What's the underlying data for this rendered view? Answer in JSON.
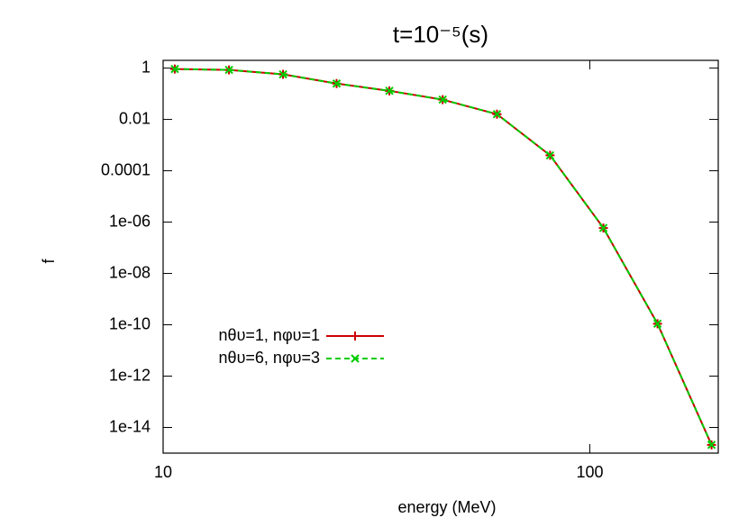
{
  "chart_data": {
    "type": "line",
    "title": "t=10⁻⁵(s)",
    "x_label": "energy (MeV)",
    "y_label": "f",
    "x": [
      10.65,
      14.27,
      19.1,
      25.5,
      33.9,
      45.2,
      60.6,
      80.7,
      107.6,
      144.1,
      192.9
    ],
    "series": [
      {
        "name": "nθυ=1, nφυ=1",
        "color": "#cc0000",
        "dash": false,
        "marker": "plus",
        "values": [
          0.92,
          0.85,
          0.57,
          0.25,
          0.13,
          0.059,
          0.016,
          0.0004,
          5.9e-07,
          1.1e-10,
          2.1e-15
        ]
      },
      {
        "name": "nθυ=6, nφυ=3",
        "color": "#00cc00",
        "dash": true,
        "marker": "cross",
        "values": [
          0.92,
          0.85,
          0.57,
          0.25,
          0.13,
          0.059,
          0.016,
          0.0004,
          5.9e-07,
          1.1e-10,
          2.1e-15
        ]
      }
    ],
    "xlog": true,
    "ylog": true,
    "xlim": [
      10,
      200
    ],
    "ylim": [
      1e-15,
      2
    ],
    "xticks": [
      10,
      100
    ],
    "yticks": [
      1,
      0.01,
      0.0001,
      {
        "value": 1e-06,
        "label": "1e-06"
      },
      {
        "value": 1e-08,
        "label": "1e-08"
      },
      {
        "value": 1e-10,
        "label": "1e-10"
      },
      {
        "value": 1e-12,
        "label": "1e-12"
      },
      {
        "value": 1e-14,
        "label": "1e-14"
      }
    ],
    "grid": false,
    "legend": "bottom-left"
  }
}
